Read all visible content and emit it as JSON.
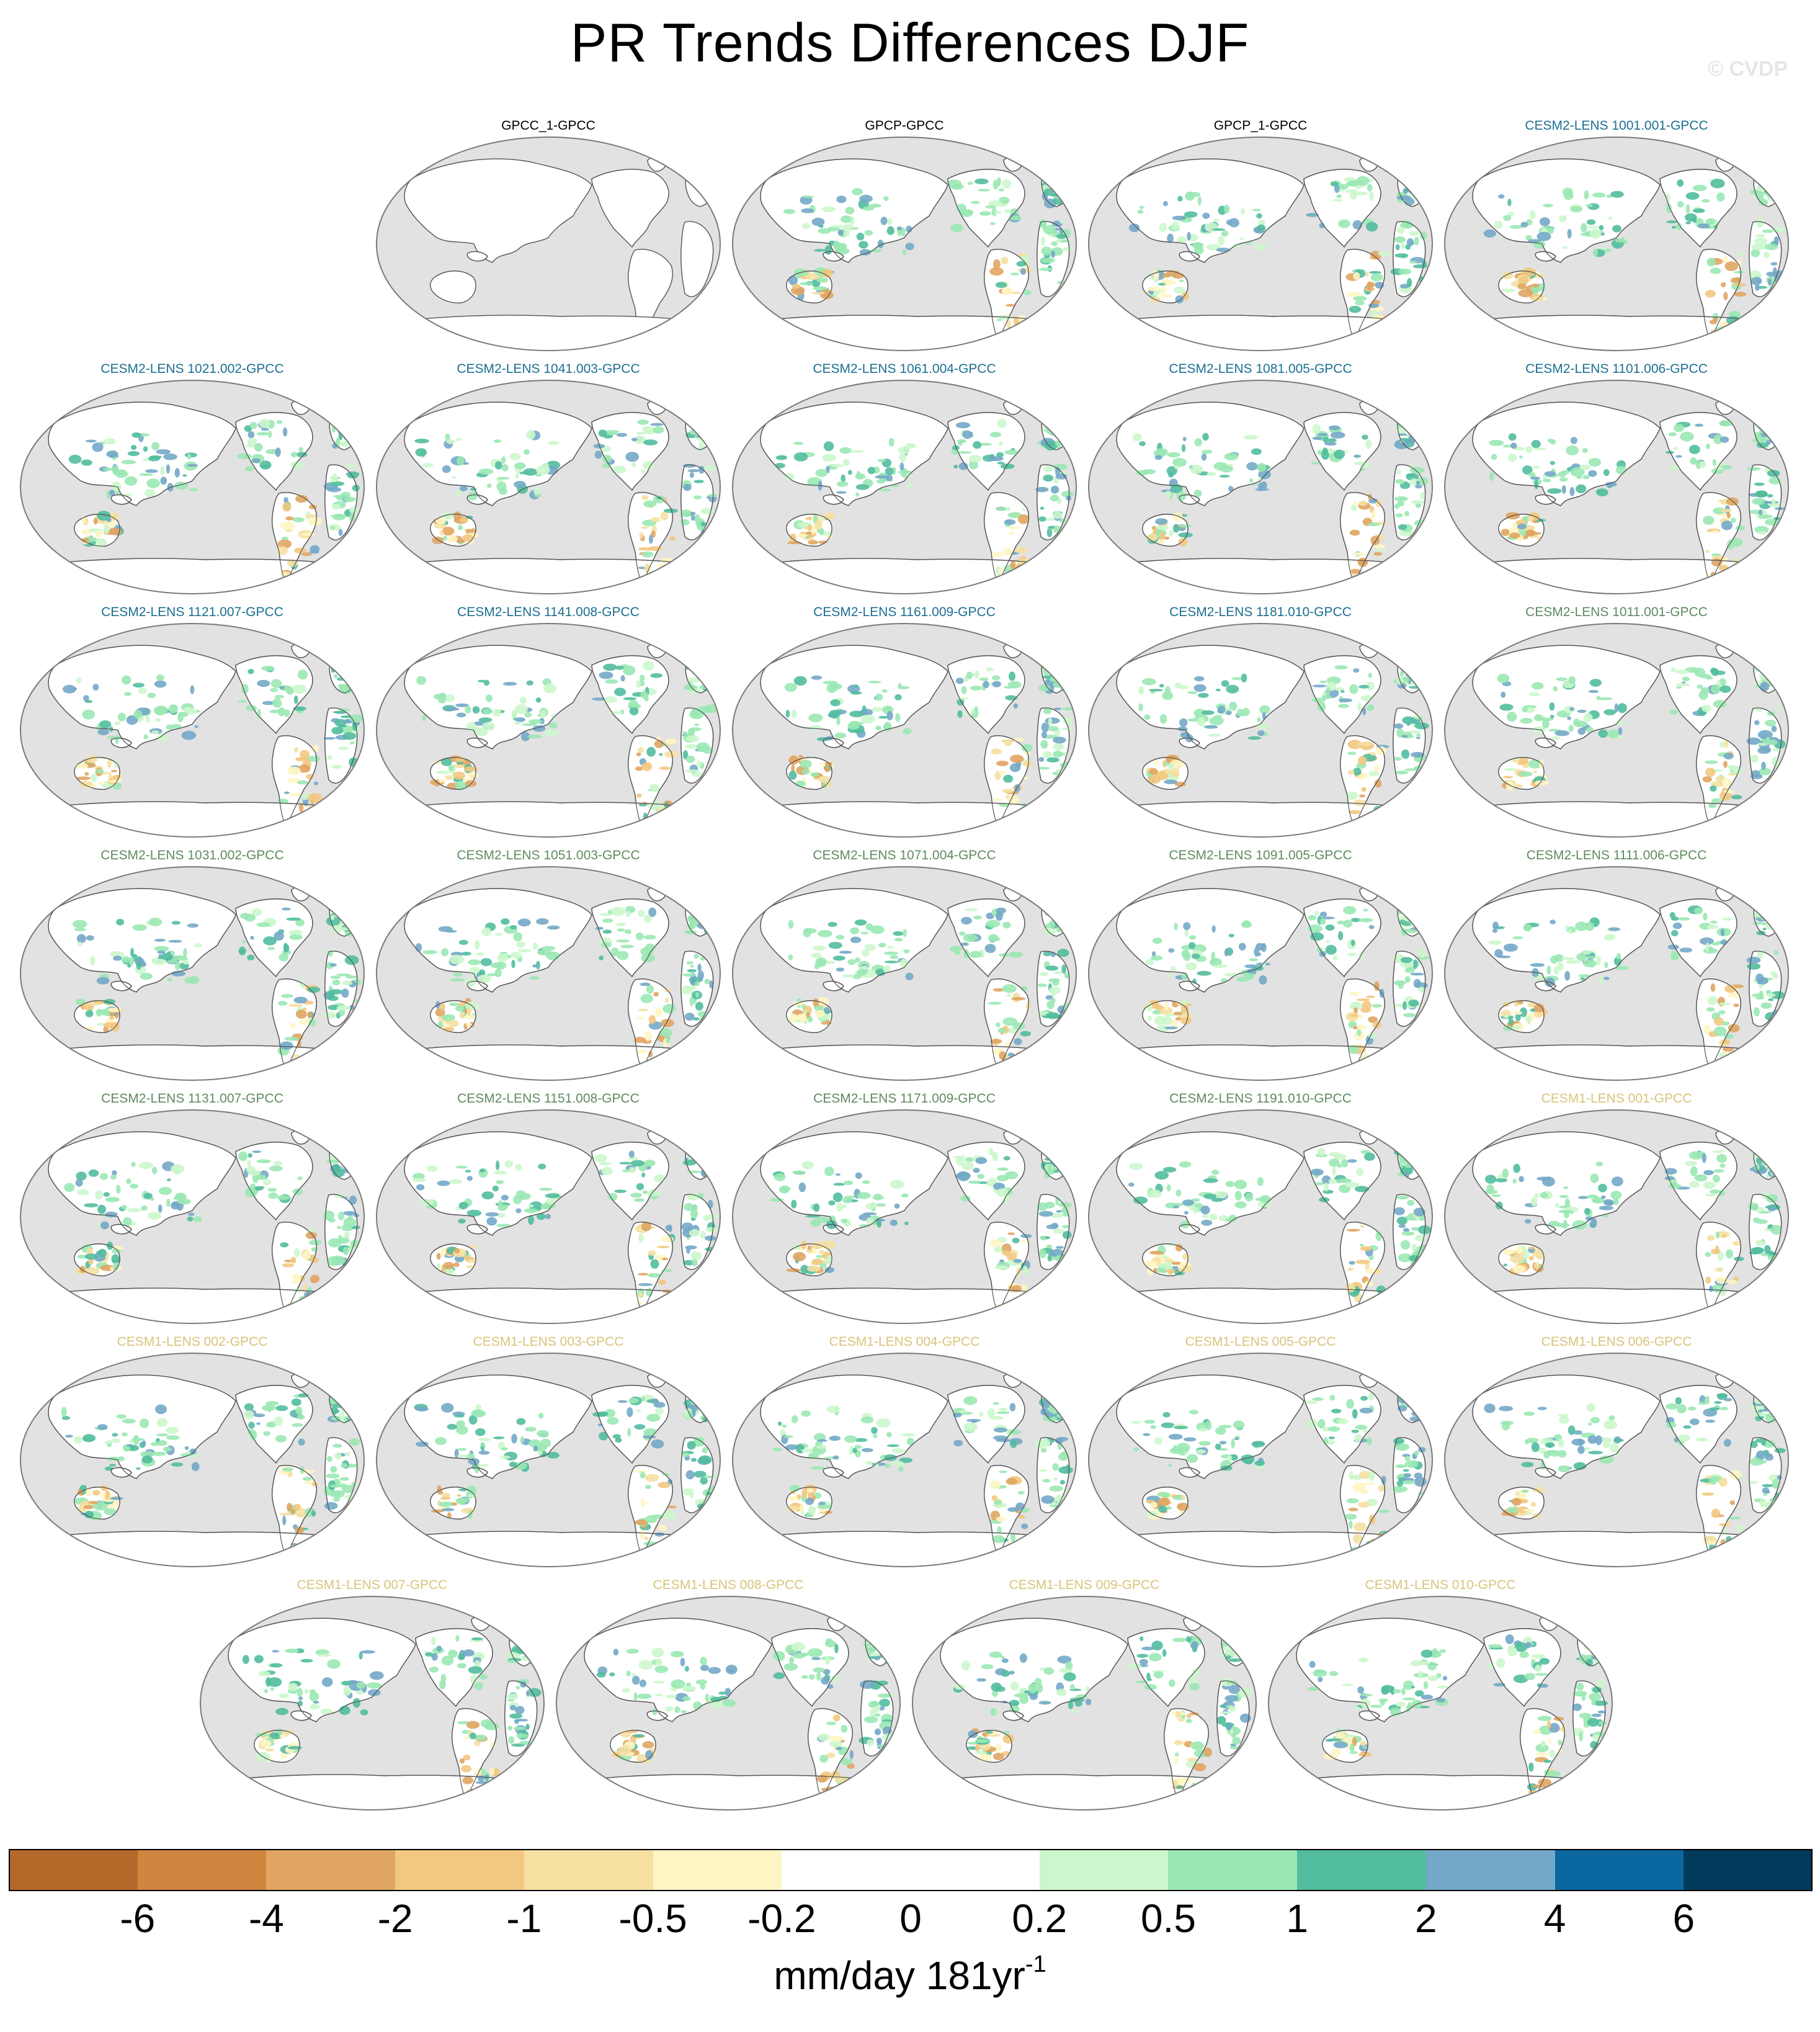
{
  "title": "PR Trends Differences DJF",
  "watermark": "© CVDP",
  "colors": {
    "ocean": "#e2e2e2",
    "land_white": "#ffffff",
    "coast": "#555555",
    "title_obs": "#000000",
    "title_cesm2_1": "#1b6f91",
    "title_cesm2_2": "#5f8a5f",
    "title_cesm1": "#d8c47a"
  },
  "panels": [
    {
      "label": "GPCC_1-GPCC",
      "group": "obs"
    },
    {
      "label": "GPCP-GPCC",
      "group": "obs"
    },
    {
      "label": "GPCP_1-GPCC",
      "group": "obs"
    },
    {
      "label": "CESM2-LENS 1001.001-GPCC",
      "group": "cesm2_1"
    },
    {
      "label": "CESM2-LENS 1021.002-GPCC",
      "group": "cesm2_1"
    },
    {
      "label": "CESM2-LENS 1041.003-GPCC",
      "group": "cesm2_1"
    },
    {
      "label": "CESM2-LENS 1061.004-GPCC",
      "group": "cesm2_1"
    },
    {
      "label": "CESM2-LENS 1081.005-GPCC",
      "group": "cesm2_1"
    },
    {
      "label": "CESM2-LENS 1101.006-GPCC",
      "group": "cesm2_1"
    },
    {
      "label": "CESM2-LENS 1121.007-GPCC",
      "group": "cesm2_1"
    },
    {
      "label": "CESM2-LENS 1141.008-GPCC",
      "group": "cesm2_1"
    },
    {
      "label": "CESM2-LENS 1161.009-GPCC",
      "group": "cesm2_1"
    },
    {
      "label": "CESM2-LENS 1181.010-GPCC",
      "group": "cesm2_1"
    },
    {
      "label": "CESM2-LENS 1011.001-GPCC",
      "group": "cesm2_2"
    },
    {
      "label": "CESM2-LENS 1031.002-GPCC",
      "group": "cesm2_2"
    },
    {
      "label": "CESM2-LENS 1051.003-GPCC",
      "group": "cesm2_2"
    },
    {
      "label": "CESM2-LENS 1071.004-GPCC",
      "group": "cesm2_2"
    },
    {
      "label": "CESM2-LENS 1091.005-GPCC",
      "group": "cesm2_2"
    },
    {
      "label": "CESM2-LENS 1111.006-GPCC",
      "group": "cesm2_2"
    },
    {
      "label": "CESM2-LENS 1131.007-GPCC",
      "group": "cesm2_2"
    },
    {
      "label": "CESM2-LENS 1151.008-GPCC",
      "group": "cesm2_2"
    },
    {
      "label": "CESM2-LENS 1171.009-GPCC",
      "group": "cesm2_2"
    },
    {
      "label": "CESM2-LENS 1191.010-GPCC",
      "group": "cesm2_2"
    },
    {
      "label": "CESM1-LENS 001-GPCC",
      "group": "cesm1"
    },
    {
      "label": "CESM1-LENS 002-GPCC",
      "group": "cesm1"
    },
    {
      "label": "CESM1-LENS 003-GPCC",
      "group": "cesm1"
    },
    {
      "label": "CESM1-LENS 004-GPCC",
      "group": "cesm1"
    },
    {
      "label": "CESM1-LENS 005-GPCC",
      "group": "cesm1"
    },
    {
      "label": "CESM1-LENS 006-GPCC",
      "group": "cesm1"
    },
    {
      "label": "CESM1-LENS 007-GPCC",
      "group": "cesm1"
    },
    {
      "label": "CESM1-LENS 008-GPCC",
      "group": "cesm1"
    },
    {
      "label": "CESM1-LENS 009-GPCC",
      "group": "cesm1"
    },
    {
      "label": "CESM1-LENS 010-GPCC",
      "group": "cesm1"
    }
  ],
  "colorbar": {
    "colors": [
      "#b4682a",
      "#cf863f",
      "#e0a563",
      "#f2c880",
      "#f5e0a2",
      "#fff5c4",
      "#ffffff",
      "#ffffff",
      "#ccf7cc",
      "#9be8b4",
      "#52bc9e",
      "#73a8c8",
      "#0a67a0",
      "#023a5c"
    ],
    "tick_labels": [
      "-6",
      "-4",
      "-2",
      "-1",
      "-0.5",
      "-0.2",
      "0",
      "0.2",
      "0.5",
      "1",
      "2",
      "4",
      "6"
    ],
    "units_main": "mm/day 181yr",
    "units_exp": "-1"
  }
}
